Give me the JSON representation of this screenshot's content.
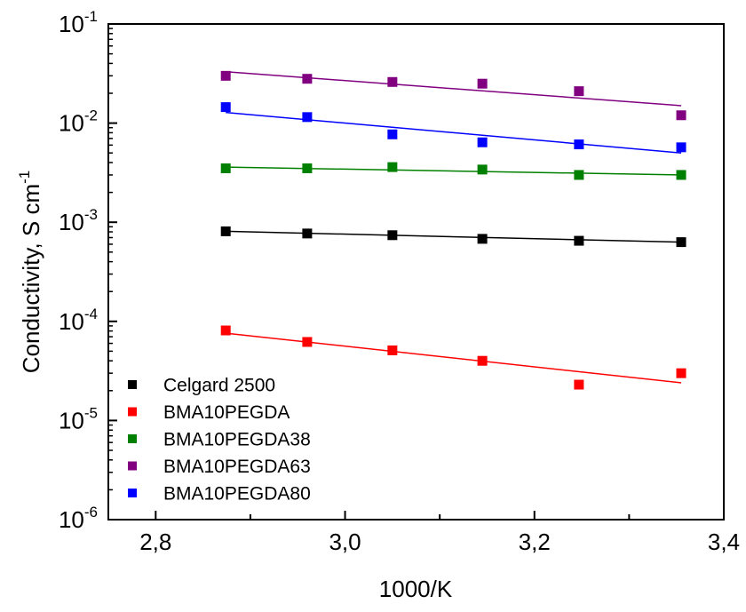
{
  "chart_data": {
    "type": "scatter",
    "xlabel": "1000/K",
    "ylabel": "Conductivity, S cm",
    "ylabel_sup": "-1",
    "xlim": [
      2.75,
      3.4
    ],
    "ylim": [
      1e-06,
      0.1
    ],
    "y_scale": "log",
    "grid": false,
    "legend_position": "bottom-left",
    "x_ticks": [
      {
        "value": 2.8,
        "label": "2,8"
      },
      {
        "value": 3.0,
        "label": "3,0"
      },
      {
        "value": 3.2,
        "label": "3,2"
      },
      {
        "value": 3.4,
        "label": "3,4"
      }
    ],
    "y_ticks": [
      {
        "value": 1e-06,
        "base": "10",
        "exp": "-6"
      },
      {
        "value": 1e-05,
        "base": "10",
        "exp": "-5"
      },
      {
        "value": 0.0001,
        "base": "10",
        "exp": "-4"
      },
      {
        "value": 0.001,
        "base": "10",
        "exp": "-3"
      },
      {
        "value": 0.01,
        "base": "10",
        "exp": "-2"
      },
      {
        "value": 0.1,
        "base": "10",
        "exp": "-1"
      }
    ],
    "x": [
      2.874,
      2.96,
      3.05,
      3.145,
      3.247,
      3.355
    ],
    "series": [
      {
        "name": "Celgard 2500",
        "color": "#000000",
        "values": [
          0.00081,
          0.00077,
          0.00074,
          0.00068,
          0.00065,
          0.00063
        ],
        "fit": [
          0.00081,
          0.00063
        ]
      },
      {
        "name": "BMA10PEGDA",
        "color": "#ff0000",
        "values": [
          8.1e-05,
          6.2e-05,
          5.1e-05,
          4e-05,
          2.3e-05,
          3e-05
        ],
        "fit": [
          7.6e-05,
          2.4e-05
        ]
      },
      {
        "name": "BMA10PEGDA38",
        "color": "#008000",
        "values": [
          0.0035,
          0.0035,
          0.0036,
          0.0034,
          0.003,
          0.003
        ],
        "fit": [
          0.0036,
          0.003
        ]
      },
      {
        "name": "BMA10PEGDA63",
        "color": "#800080",
        "values": [
          0.03,
          0.028,
          0.026,
          0.025,
          0.021,
          0.012
        ],
        "fit": [
          0.033,
          0.015
        ]
      },
      {
        "name": "BMA10PEGDA80",
        "color": "#0000ff",
        "values": [
          0.0145,
          0.0115,
          0.0077,
          0.0064,
          0.0061,
          0.0057
        ],
        "fit": [
          0.0128,
          0.005
        ]
      }
    ]
  }
}
